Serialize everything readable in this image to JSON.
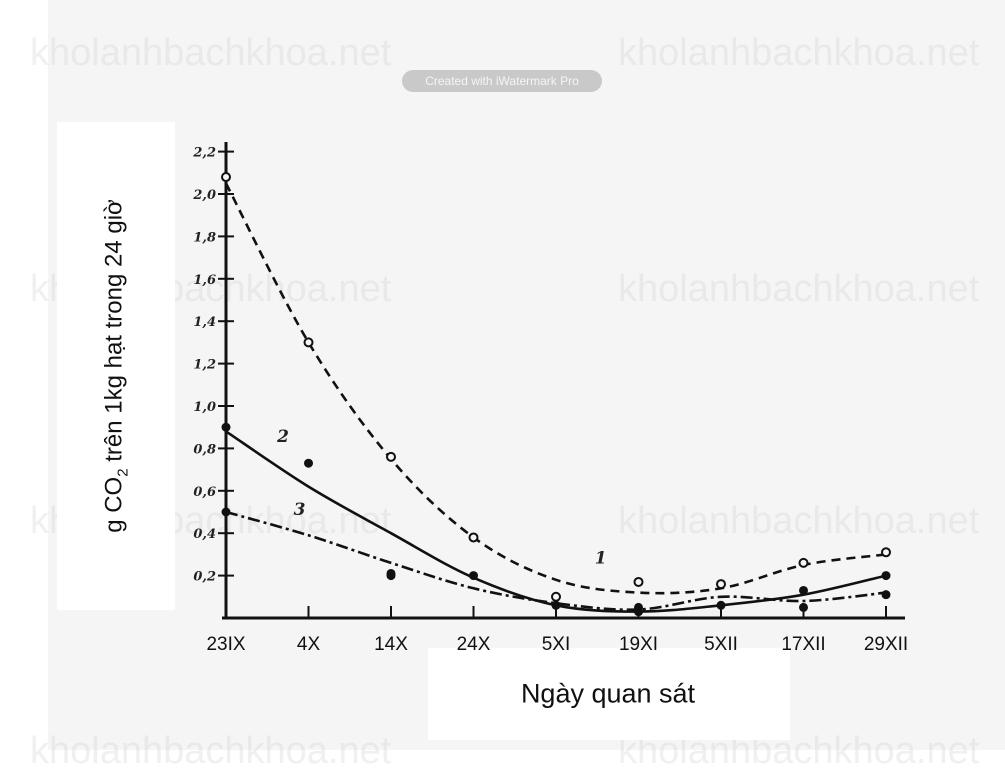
{
  "watermarks": [
    "kholanhbachkhoa.net",
    "kholanhbachkhoa.net",
    "kholanhbachkhoa.net",
    "kholanhbachkhoa.net",
    "kholanhbachkhoa.net",
    "kholanhbachkhoa.net",
    "kholanhbachkhoa.net",
    "kholanhbachkhoa.net"
  ],
  "badge_text": "Created with iWatermark Pro",
  "chart_data": {
    "type": "line",
    "title": "",
    "ylabel": {
      "main": "g CO",
      "sub": "2",
      "rest": " trên 1kg hạt trong 24 giờ"
    },
    "xlabel": "Ngày quan sát",
    "categories": [
      "23IX",
      "4X",
      "14X",
      "24X",
      "5XI",
      "19XI",
      "5XII",
      "17XII",
      "29XII"
    ],
    "y_ticks": [
      "0,2",
      "0,4",
      "0,6",
      "0,8",
      "1,0",
      "1,2",
      "1,4",
      "1,6",
      "1,8",
      "2,0",
      "2,2"
    ],
    "y_tick_values": [
      0.2,
      0.4,
      0.6,
      0.8,
      1.0,
      1.2,
      1.4,
      1.6,
      1.8,
      2.0,
      2.2
    ],
    "ylim": [
      0,
      2.2
    ],
    "series": [
      {
        "name": "1",
        "style": "dashed",
        "values": [
          2.05,
          1.3,
          0.75,
          0.38,
          0.18,
          0.12,
          0.14,
          0.25,
          0.3
        ],
        "points": [
          2.08,
          1.3,
          0.76,
          0.38,
          0.1,
          0.17,
          0.16,
          0.26,
          0.31
        ]
      },
      {
        "name": "2",
        "style": "solid",
        "values": [
          0.88,
          0.62,
          0.4,
          0.19,
          0.06,
          0.03,
          0.06,
          0.11,
          0.2
        ],
        "points": [
          0.9,
          0.73,
          0.2,
          0.2,
          0.06,
          0.05,
          0.06,
          0.13,
          0.2
        ]
      },
      {
        "name": "3",
        "style": "dashdot",
        "values": [
          0.5,
          0.39,
          0.26,
          0.14,
          0.07,
          0.04,
          0.1,
          0.08,
          0.12
        ],
        "points": [
          0.5,
          null,
          0.21,
          null,
          null,
          0.03,
          null,
          0.05,
          0.11
        ]
      }
    ],
    "curve_labels": [
      {
        "series": "1",
        "text": "1"
      },
      {
        "series": "2",
        "text": "2"
      },
      {
        "series": "3",
        "text": "3"
      }
    ]
  }
}
